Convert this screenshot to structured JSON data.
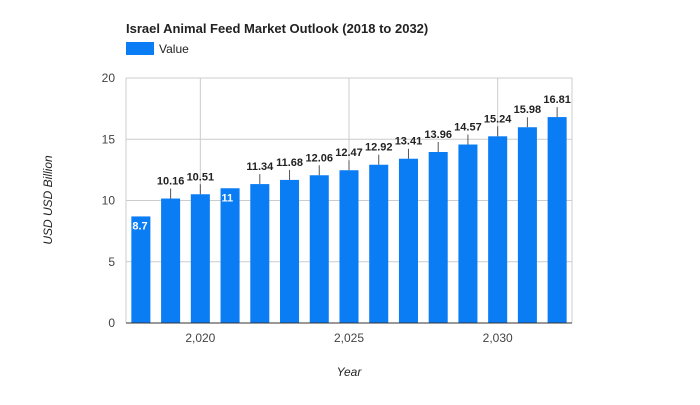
{
  "chart_data": {
    "type": "bar",
    "title": "Israel Animal Feed Market Outlook (2018 to 2032)",
    "xlabel": "Year",
    "ylabel": "USD USD Billion",
    "x": [
      2018,
      2019,
      2020,
      2021,
      2022,
      2023,
      2024,
      2025,
      2026,
      2027,
      2028,
      2029,
      2030,
      2031,
      2032
    ],
    "series": [
      {
        "name": "Value",
        "color": "#0a7cf4",
        "values": [
          8.7,
          10.16,
          10.51,
          11,
          11.34,
          11.68,
          12.06,
          12.47,
          12.92,
          13.41,
          13.96,
          14.57,
          15.24,
          15.98,
          16.81
        ]
      }
    ],
    "data_labels": [
      "8.7",
      "10.16",
      "10.51",
      "11",
      "11.34",
      "11.68",
      "12.06",
      "12.47",
      "12.92",
      "13.41",
      "13.96",
      "14.57",
      "15.24",
      "15.98",
      "16.81"
    ],
    "ylim": [
      0,
      20
    ],
    "yticks": [
      0,
      5,
      10,
      15,
      20
    ],
    "ytick_labels": [
      "0",
      "5",
      "10",
      "15",
      "20"
    ],
    "xticks": [
      2020,
      2025,
      2030
    ],
    "xtick_labels": [
      "2,020",
      "2,025",
      "2,030"
    ],
    "grid": true,
    "legend_position": "top-left"
  }
}
